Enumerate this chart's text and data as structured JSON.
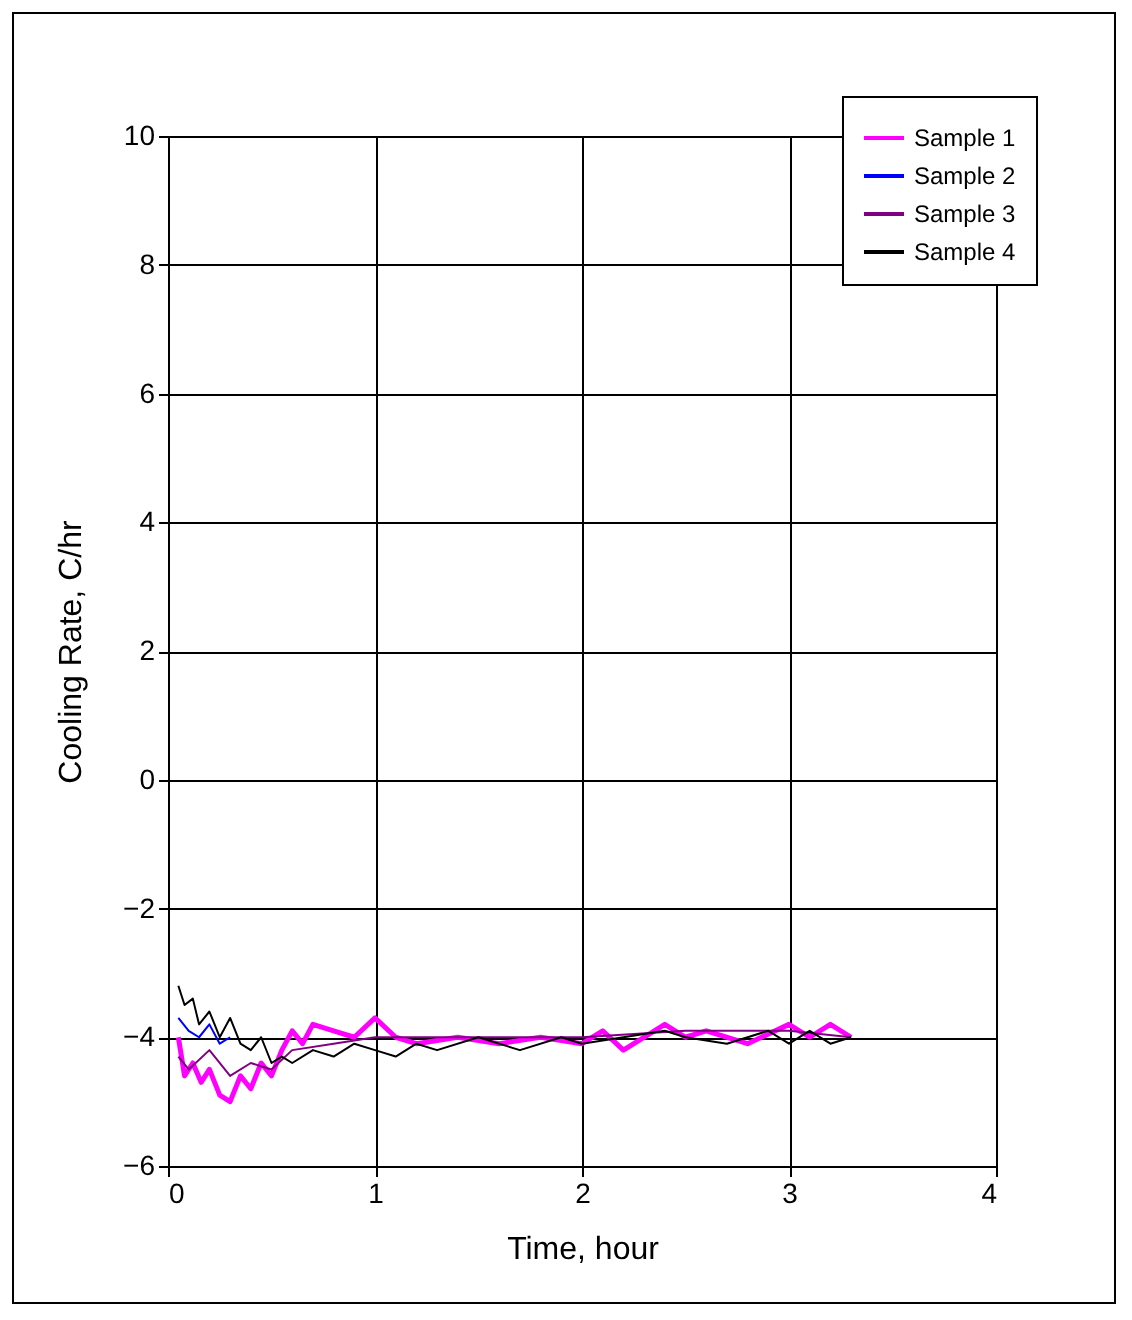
{
  "chart_data": {
    "type": "line",
    "xlabel": "Time, hour",
    "ylabel": "Cooling Rate, C/hr",
    "xlim": [
      0,
      4
    ],
    "xticks": [
      0,
      1,
      2,
      3,
      4
    ],
    "ylim": [
      -6,
      10
    ],
    "yticks": [
      -6,
      -4,
      -2,
      0,
      2,
      4,
      6,
      8,
      10
    ],
    "grid": true,
    "legend": "top right",
    "line_style": "solid",
    "marker": "none",
    "series": [
      {
        "name": "Sample 1",
        "color": "#ff00ff",
        "x": [
          0.05,
          0.08,
          0.12,
          0.16,
          0.2,
          0.25,
          0.3,
          0.35,
          0.4,
          0.45,
          0.5,
          0.55,
          0.6,
          0.65,
          0.7,
          0.8,
          0.9,
          1.0,
          1.1,
          1.2,
          1.4,
          1.6,
          1.8,
          2.0,
          2.1,
          2.2,
          2.4,
          2.5,
          2.6,
          2.8,
          3.0,
          3.1,
          3.2,
          3.3
        ],
        "values": [
          -4.0,
          -4.6,
          -4.4,
          -4.7,
          -4.5,
          -4.9,
          -5.0,
          -4.6,
          -4.8,
          -4.4,
          -4.6,
          -4.2,
          -3.9,
          -4.1,
          -3.8,
          -3.9,
          -4.0,
          -3.7,
          -4.0,
          -4.1,
          -4.0,
          -4.1,
          -4.0,
          -4.1,
          -3.9,
          -4.2,
          -3.8,
          -4.0,
          -3.9,
          -4.1,
          -3.8,
          -4.0,
          -3.8,
          -4.0
        ]
      },
      {
        "name": "Sample 2",
        "color": "#0000ff",
        "x": [
          0.05,
          0.1,
          0.15,
          0.2,
          0.25,
          0.3
        ],
        "values": [
          -3.7,
          -3.9,
          -4.0,
          -3.8,
          -4.1,
          -4.0
        ]
      },
      {
        "name": "Sample 3",
        "color": "#800080",
        "x": [
          0.05,
          0.1,
          0.2,
          0.3,
          0.4,
          0.5,
          0.6,
          0.8,
          1.0,
          1.5,
          2.0,
          2.5,
          3.0,
          3.3
        ],
        "values": [
          -4.3,
          -4.5,
          -4.2,
          -4.6,
          -4.4,
          -4.5,
          -4.2,
          -4.1,
          -4.0,
          -4.0,
          -4.0,
          -3.9,
          -3.9,
          -4.0
        ]
      },
      {
        "name": "Sample 4",
        "color": "#000000",
        "x": [
          0.05,
          0.08,
          0.12,
          0.15,
          0.2,
          0.25,
          0.3,
          0.35,
          0.4,
          0.45,
          0.5,
          0.55,
          0.6,
          0.7,
          0.8,
          0.9,
          1.0,
          1.1,
          1.2,
          1.3,
          1.5,
          1.7,
          1.9,
          2.0,
          2.2,
          2.4,
          2.5,
          2.7,
          2.9,
          3.0,
          3.1,
          3.2,
          3.3
        ],
        "values": [
          -3.2,
          -3.5,
          -3.4,
          -3.8,
          -3.6,
          -4.0,
          -3.7,
          -4.1,
          -4.2,
          -4.0,
          -4.4,
          -4.3,
          -4.4,
          -4.2,
          -4.3,
          -4.1,
          -4.2,
          -4.3,
          -4.1,
          -4.2,
          -4.0,
          -4.2,
          -4.0,
          -4.1,
          -4.0,
          -3.9,
          -4.0,
          -4.1,
          -3.9,
          -4.1,
          -3.9,
          -4.1,
          -4.0
        ]
      }
    ]
  }
}
